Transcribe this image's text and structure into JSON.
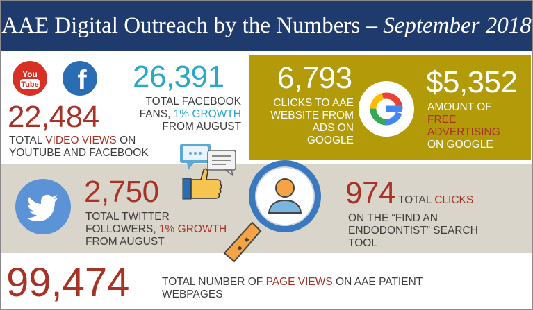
{
  "header": {
    "title_main": "AAE Digital Outreach by the Numbers – ",
    "title_date": "September 2018"
  },
  "video": {
    "number": "22,484",
    "caption_pre": "TOTAL ",
    "caption_hl": "VIDEO VIEWS",
    "caption_post": " ON YOUTUBE AND FACEBOOK",
    "youtube_logo": "YouTube",
    "facebook_logo": "f"
  },
  "facebook": {
    "number": "26,391",
    "caption_pre": "TOTAL FACEBOOK FANS, ",
    "caption_hl": "1% GROWTH",
    "caption_post": " FROM AUGUST"
  },
  "clicks_ads": {
    "number": "6,793",
    "caption_hl": "CLICKS",
    "caption_post": " TO AAE WEBSITE FROM ADS ON GOOGLE"
  },
  "free_ads": {
    "number": "$5,352",
    "caption_pre": "AMOUNT OF ",
    "caption_hl": "FREE ADVERTISING",
    "caption_post": " ON GOOGLE"
  },
  "twitter": {
    "number": "2,750",
    "caption_pre": "TOTAL TWITTER FOLLOWERS, ",
    "caption_hl": "1% GROWTH",
    "caption_post": " FROM AUGUST"
  },
  "find_endo": {
    "number": "974",
    "caption_pre": " TOTAL  ",
    "caption_hl": "CLICKS",
    "caption_post": "ON THE “FIND AN ENDODONTIST” SEARCH TOOL"
  },
  "page_views": {
    "number": "99,474",
    "caption_pre": "TOTAL  NUMBER  OF  ",
    "caption_hl": "PAGE VIEWS",
    "caption_post": " ON AAE PATIENT WEBPAGES"
  },
  "icons": {
    "youtube": "youtube-icon",
    "facebook": "facebook-icon",
    "google": "google-icon",
    "twitter": "twitter-icon",
    "thumbs_up": "thumbs-up-chat-icon",
    "magnifier": "magnifier-person-icon"
  },
  "colors": {
    "header_bg": "#1f3b6e",
    "gold_bg": "#b39a09",
    "grey_bg": "#d9d5cb",
    "accent_red": "#a93226",
    "accent_teal": "#29a9c9"
  }
}
